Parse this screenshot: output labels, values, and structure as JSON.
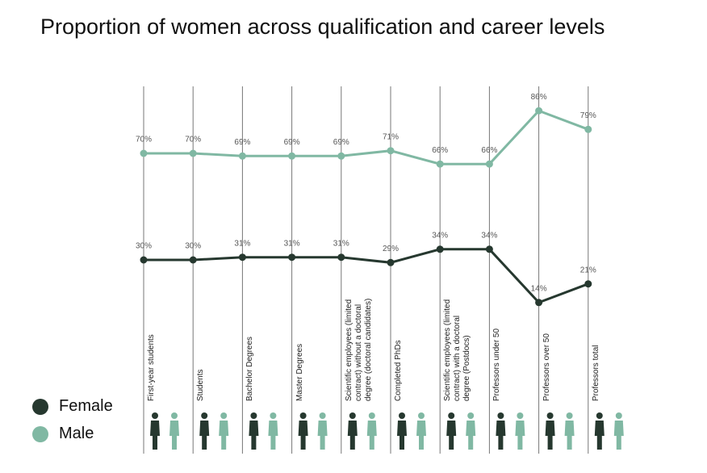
{
  "chart_data": {
    "type": "line",
    "title": "Proportion of women across qualification and career levels",
    "categories": [
      "First-year students",
      "Students",
      "Bachelor Degrees",
      "Master Degrees",
      "Scientific employees (limited contract) without a doctoral degree (doctoral candidates)",
      "Completed PhDs",
      "Scientific employees (limited contract) with a doctoral degree (Postdocs)",
      "Professors under 50",
      "Professors over 50",
      "Professors total"
    ],
    "series": [
      {
        "name": "Female",
        "color": "#26382f",
        "values": [
          30,
          30,
          31,
          31,
          31,
          29,
          34,
          34,
          14,
          21
        ],
        "value_labels": [
          "30%",
          "30%",
          "31%",
          "31%",
          "31%",
          "29%",
          "34%",
          "34%",
          "14%",
          "21%"
        ]
      },
      {
        "name": "Male",
        "color": "#80b8a3",
        "values": [
          70,
          70,
          69,
          69,
          69,
          71,
          66,
          66,
          86,
          79
        ],
        "value_labels": [
          "70%",
          "70%",
          "69%",
          "69%",
          "69%",
          "71%",
          "66%",
          "66%",
          "86%",
          "79%"
        ]
      }
    ],
    "ylim": [
      0,
      100
    ],
    "legend": "bottom-left"
  }
}
